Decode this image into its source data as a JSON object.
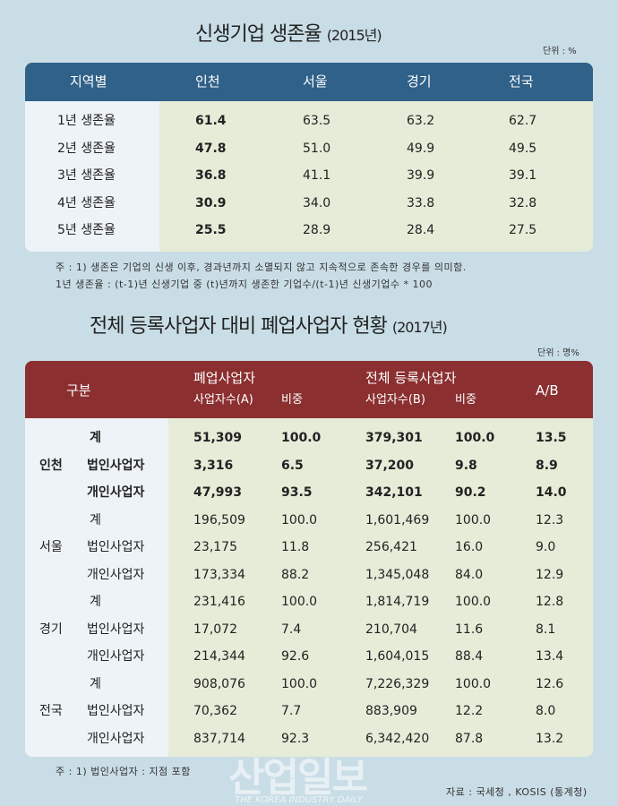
{
  "t1": {
    "title": "신생기업 생존율",
    "year": "(2015년)",
    "unit": "단위 : %",
    "headers": [
      "지역별",
      "인천",
      "서울",
      "경기",
      "전국"
    ],
    "rows": [
      [
        "1년 생존율",
        "61.4",
        "63.5",
        "63.2",
        "62.7"
      ],
      [
        "2년 생존율",
        "47.8",
        "51.0",
        "49.9",
        "49.5"
      ],
      [
        "3년 생존율",
        "36.8",
        "41.1",
        "39.9",
        "39.1"
      ],
      [
        "4년 생존율",
        "30.9",
        "34.0",
        "33.8",
        "32.8"
      ],
      [
        "5년 생존율",
        "25.5",
        "28.9",
        "28.4",
        "27.5"
      ]
    ],
    "note1": "주 : 1) 생존은 기업의 신생 이후, 경과년까지 소멸되지 않고 지속적으로 존속한 경우를 의미함.",
    "note2": "1년 생존율 : (t-1)년 신생기업 중 (t)년까지 생존한 기업수/(t-1)년 신생기업수 * 100"
  },
  "t2": {
    "title": "전체 등록사업자 대비 폐업사업자 현황",
    "year": "(2017년)",
    "unit": "단위 : 명%",
    "h_group": "구분",
    "h_closed": "폐업사업자",
    "h_total": "전체 등록사업자",
    "h_a": "사업자수(A)",
    "h_share1": "비중",
    "h_b": "사업자수(B)",
    "h_share2": "비중",
    "h_ab": "A/B",
    "groups": [
      {
        "region": "인천",
        "bold": true,
        "rows": [
          [
            "계",
            "51,309",
            "100.0",
            "379,301",
            "100.0",
            "13.5"
          ],
          [
            "법인사업자",
            "3,316",
            "6.5",
            "37,200",
            "9.8",
            "8.9"
          ],
          [
            "개인사업자",
            "47,993",
            "93.5",
            "342,101",
            "90.2",
            "14.0"
          ]
        ]
      },
      {
        "region": "서울",
        "bold": false,
        "rows": [
          [
            "계",
            "196,509",
            "100.0",
            "1,601,469",
            "100.0",
            "12.3"
          ],
          [
            "법인사업자",
            "23,175",
            "11.8",
            "256,421",
            "16.0",
            "9.0"
          ],
          [
            "개인사업자",
            "173,334",
            "88.2",
            "1,345,048",
            "84.0",
            "12.9"
          ]
        ]
      },
      {
        "region": "경기",
        "bold": false,
        "rows": [
          [
            "계",
            "231,416",
            "100.0",
            "1,814,719",
            "100.0",
            "12.8"
          ],
          [
            "법인사업자",
            "17,072",
            "7.4",
            "210,704",
            "11.6",
            "8.1"
          ],
          [
            "개인사업자",
            "214,344",
            "92.6",
            "1,604,015",
            "88.4",
            "13.4"
          ]
        ]
      },
      {
        "region": "전국",
        "bold": false,
        "rows": [
          [
            "계",
            "908,076",
            "100.0",
            "7,226,329",
            "100.0",
            "12.6"
          ],
          [
            "법인사업자",
            "70,362",
            "7.7",
            "883,909",
            "12.2",
            "8.0"
          ],
          [
            "개인사업자",
            "837,714",
            "92.3",
            "6,342,420",
            "87.8",
            "13.2"
          ]
        ]
      }
    ],
    "note": "주 : 1) 법인사업자 : 지점 포함"
  },
  "source": "자료 : 국세청 , KOSIS (통계청)",
  "watermark": {
    "main": "산업일보",
    "sub": "THE KOREA INDUSTRY DAILY"
  },
  "colors": {
    "header1": "#2f6189",
    "header2": "#8b2f30",
    "background": "#c9dde6",
    "body": "#e6ecd8"
  }
}
